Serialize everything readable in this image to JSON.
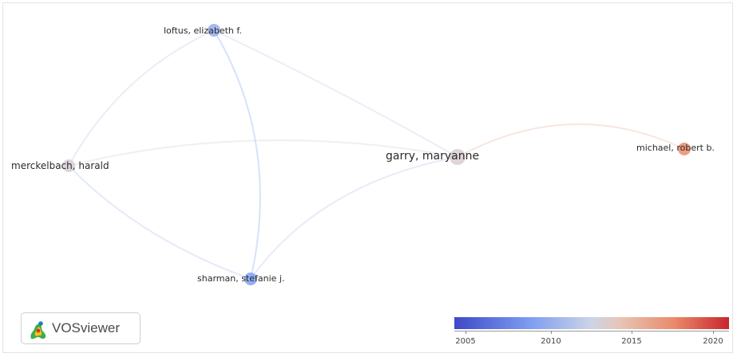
{
  "network": {
    "nodes": [
      {
        "id": "loftus",
        "label": "loftus, elizabeth f.",
        "year": 2008.5,
        "weight": 2
      },
      {
        "id": "merckelbach",
        "label": "merckelbach, harald",
        "year": 2012,
        "weight": 2
      },
      {
        "id": "garry",
        "label": "garry, maryanne",
        "year": 2012.5,
        "weight": 3
      },
      {
        "id": "michael",
        "label": "michael, robert b.",
        "year": 2017.5,
        "weight": 2
      },
      {
        "id": "sharman",
        "label": "sharman, stefanie j.",
        "year": 2007.5,
        "weight": 2
      }
    ],
    "links": [
      {
        "source": "loftus",
        "target": "sharman"
      },
      {
        "source": "loftus",
        "target": "merckelbach"
      },
      {
        "source": "loftus",
        "target": "garry"
      },
      {
        "source": "merckelbach",
        "target": "sharman"
      },
      {
        "source": "merckelbach",
        "target": "garry"
      },
      {
        "source": "sharman",
        "target": "garry"
      },
      {
        "source": "garry",
        "target": "michael"
      }
    ]
  },
  "logo": {
    "text": "VOSviewer",
    "icon": "vosviewer-logo-icon"
  },
  "color_scale": {
    "ticks": [
      "2005",
      "2010",
      "2015",
      "2020"
    ],
    "range": [
      2004,
      2021
    ],
    "colors": [
      "#3e49c7",
      "#7f9ef2",
      "#cdd4e6",
      "#e6c6b8",
      "#ea8a6a",
      "#c9262e"
    ]
  }
}
